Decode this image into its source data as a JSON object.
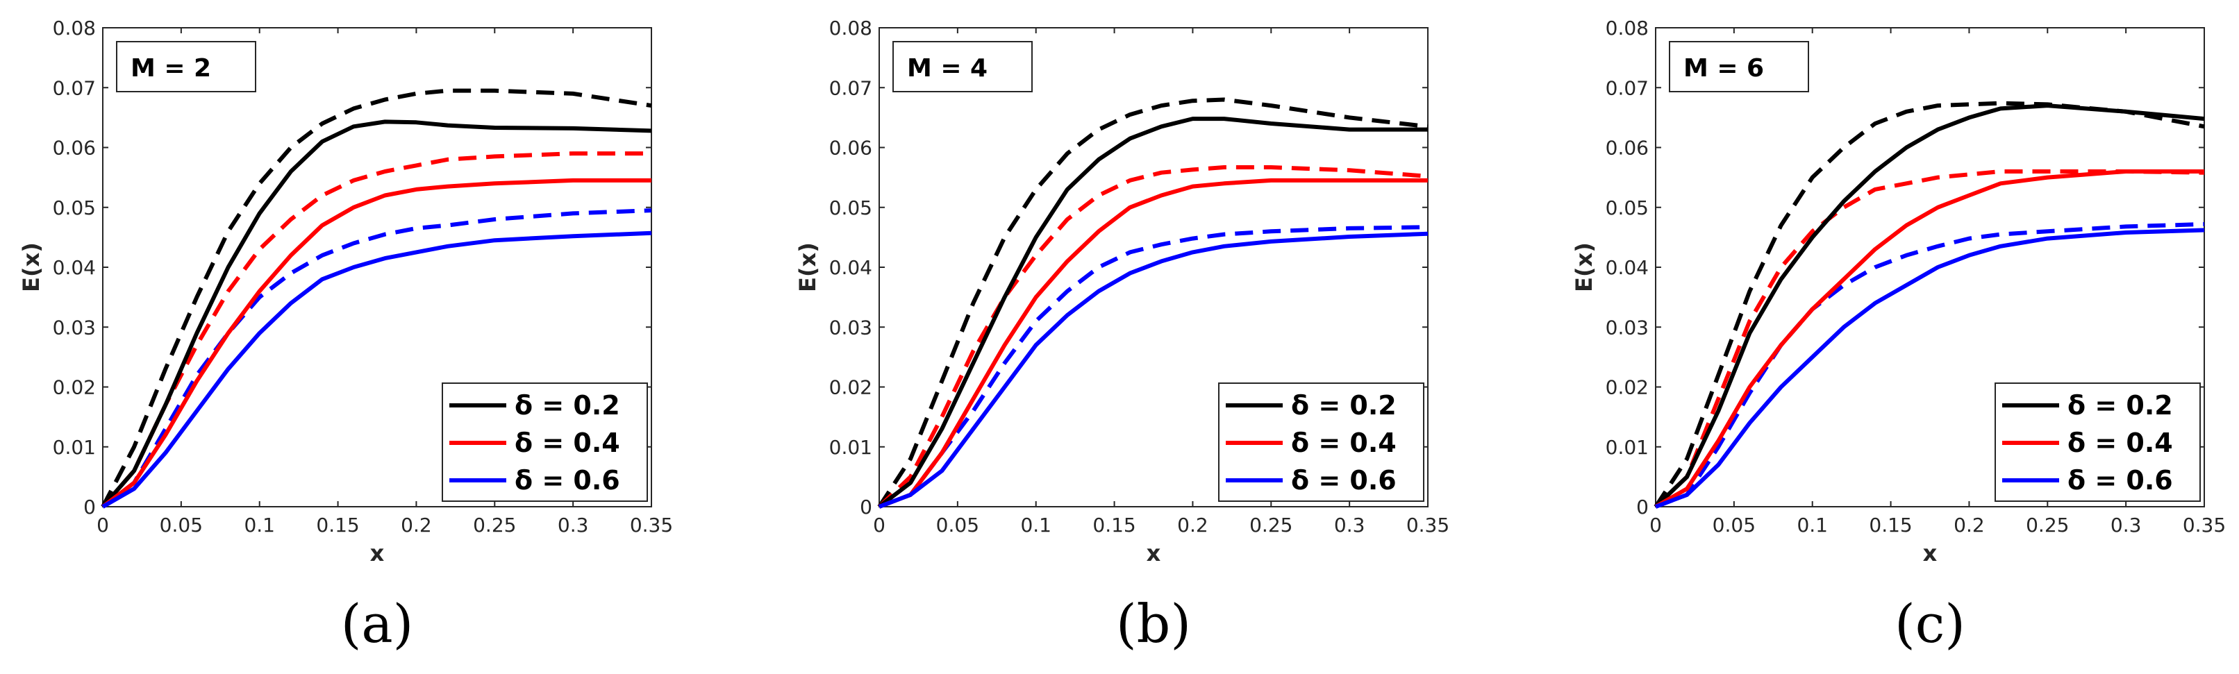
{
  "chart_data": [
    {
      "type": "line",
      "annotation": "M = 2",
      "caption": "(a)",
      "xlabel": "x",
      "ylabel": "E(x)",
      "xlim": [
        0,
        0.35
      ],
      "ylim": [
        0,
        0.08
      ],
      "xticks": [
        "0",
        "0.05",
        "0.1",
        "0.15",
        "0.2",
        "0.25",
        "0.3",
        "0.35"
      ],
      "yticks": [
        "0",
        "0.01",
        "0.02",
        "0.03",
        "0.04",
        "0.05",
        "0.06",
        "0.07",
        "0.08"
      ],
      "legend": {
        "position": "bottom-right",
        "entries": [
          "δ = 0.2",
          "δ = 0.4",
          "δ = 0.6"
        ]
      },
      "x": [
        0,
        0.02,
        0.04,
        0.06,
        0.08,
        0.1,
        0.12,
        0.14,
        0.16,
        0.18,
        0.2,
        0.22,
        0.25,
        0.3,
        0.35
      ],
      "series": [
        {
          "name": "δ = 0.2",
          "style": "solid",
          "color": "#000000",
          "values": [
            0,
            0.006,
            0.017,
            0.029,
            0.04,
            0.049,
            0.056,
            0.061,
            0.0635,
            0.0643,
            0.0642,
            0.0637,
            0.0633,
            0.0632,
            0.0628
          ]
        },
        {
          "name": "δ = 0.2",
          "style": "dashed",
          "color": "#000000",
          "values": [
            0,
            0.01,
            0.023,
            0.035,
            0.046,
            0.054,
            0.06,
            0.064,
            0.0665,
            0.068,
            0.069,
            0.0695,
            0.0695,
            0.069,
            0.067
          ]
        },
        {
          "name": "δ = 0.4",
          "style": "solid",
          "color": "#ff0000",
          "values": [
            0,
            0.004,
            0.012,
            0.021,
            0.029,
            0.036,
            0.042,
            0.047,
            0.05,
            0.052,
            0.053,
            0.0535,
            0.054,
            0.0545,
            0.0545
          ]
        },
        {
          "name": "δ = 0.4",
          "style": "dashed",
          "color": "#ff0000",
          "values": [
            0,
            0.006,
            0.017,
            0.027,
            0.036,
            0.043,
            0.048,
            0.052,
            0.0545,
            0.056,
            0.057,
            0.058,
            0.0585,
            0.059,
            0.059
          ]
        },
        {
          "name": "δ = 0.6",
          "style": "solid",
          "color": "#0000ff",
          "values": [
            0,
            0.003,
            0.009,
            0.016,
            0.023,
            0.029,
            0.034,
            0.038,
            0.04,
            0.0415,
            0.0425,
            0.0435,
            0.0445,
            0.0452,
            0.0457
          ]
        },
        {
          "name": "δ = 0.6",
          "style": "dashed",
          "color": "#0000ff",
          "values": [
            0,
            0.004,
            0.013,
            0.022,
            0.029,
            0.035,
            0.039,
            0.042,
            0.044,
            0.0455,
            0.0465,
            0.047,
            0.048,
            0.049,
            0.0495
          ]
        }
      ]
    },
    {
      "type": "line",
      "annotation": "M = 4",
      "caption": "(b)",
      "xlabel": "x",
      "ylabel": "E(x)",
      "xlim": [
        0,
        0.35
      ],
      "ylim": [
        0,
        0.08
      ],
      "xticks": [
        "0",
        "0.05",
        "0.1",
        "0.15",
        "0.2",
        "0.25",
        "0.3",
        "0.35"
      ],
      "yticks": [
        "0",
        "0.01",
        "0.02",
        "0.03",
        "0.04",
        "0.05",
        "0.06",
        "0.07",
        "0.08"
      ],
      "legend": {
        "position": "bottom-right",
        "entries": [
          "δ = 0.2",
          "δ = 0.4",
          "δ = 0.6"
        ]
      },
      "x": [
        0,
        0.02,
        0.04,
        0.06,
        0.08,
        0.1,
        0.12,
        0.14,
        0.16,
        0.18,
        0.2,
        0.22,
        0.25,
        0.3,
        0.35
      ],
      "series": [
        {
          "name": "δ = 0.2",
          "style": "solid",
          "color": "#000000",
          "values": [
            0,
            0.004,
            0.013,
            0.024,
            0.035,
            0.045,
            0.053,
            0.058,
            0.0615,
            0.0635,
            0.0648,
            0.0648,
            0.064,
            0.063,
            0.063
          ]
        },
        {
          "name": "δ = 0.2",
          "style": "dashed",
          "color": "#000000",
          "values": [
            0,
            0.008,
            0.021,
            0.034,
            0.045,
            0.053,
            0.059,
            0.063,
            0.0655,
            0.067,
            0.0678,
            0.068,
            0.067,
            0.065,
            0.0635
          ]
        },
        {
          "name": "δ = 0.4",
          "style": "solid",
          "color": "#ff0000",
          "values": [
            0,
            0.002,
            0.009,
            0.018,
            0.027,
            0.035,
            0.041,
            0.046,
            0.05,
            0.052,
            0.0535,
            0.054,
            0.0545,
            0.0545,
            0.0545
          ]
        },
        {
          "name": "δ = 0.4",
          "style": "dashed",
          "color": "#ff0000",
          "values": [
            0,
            0.005,
            0.015,
            0.026,
            0.035,
            0.042,
            0.048,
            0.052,
            0.0545,
            0.0558,
            0.0563,
            0.0567,
            0.0567,
            0.0562,
            0.0552
          ]
        },
        {
          "name": "δ = 0.6",
          "style": "solid",
          "color": "#0000ff",
          "values": [
            0,
            0.002,
            0.006,
            0.013,
            0.02,
            0.027,
            0.032,
            0.036,
            0.039,
            0.041,
            0.0425,
            0.0435,
            0.0443,
            0.0451,
            0.0456
          ]
        },
        {
          "name": "δ = 0.6",
          "style": "dashed",
          "color": "#0000ff",
          "values": [
            0,
            0.002,
            0.009,
            0.016,
            0.024,
            0.031,
            0.036,
            0.04,
            0.0425,
            0.0438,
            0.0448,
            0.0455,
            0.046,
            0.0465,
            0.0467
          ]
        }
      ]
    },
    {
      "type": "line",
      "annotation": "M = 6",
      "caption": "(c)",
      "xlabel": "x",
      "ylabel": "E(x)",
      "xlim": [
        0,
        0.35
      ],
      "ylim": [
        0,
        0.08
      ],
      "xticks": [
        "0",
        "0.05",
        "0.1",
        "0.15",
        "0.2",
        "0.25",
        "0.3",
        "0.35"
      ],
      "yticks": [
        "0",
        "0.01",
        "0.02",
        "0.03",
        "0.04",
        "0.05",
        "0.06",
        "0.07",
        "0.08"
      ],
      "legend": {
        "position": "bottom-right",
        "entries": [
          "δ = 0.2",
          "δ = 0.4",
          "δ = 0.6"
        ]
      },
      "x": [
        0,
        0.02,
        0.04,
        0.06,
        0.08,
        0.1,
        0.12,
        0.14,
        0.16,
        0.18,
        0.2,
        0.22,
        0.25,
        0.3,
        0.35
      ],
      "series": [
        {
          "name": "δ = 0.2",
          "style": "solid",
          "color": "#000000",
          "values": [
            0,
            0.005,
            0.016,
            0.029,
            0.038,
            0.045,
            0.051,
            0.056,
            0.06,
            0.063,
            0.065,
            0.0665,
            0.067,
            0.066,
            0.0648
          ]
        },
        {
          "name": "δ = 0.2",
          "style": "dashed",
          "color": "#000000",
          "values": [
            0,
            0.008,
            0.022,
            0.036,
            0.047,
            0.055,
            0.06,
            0.064,
            0.066,
            0.067,
            0.0672,
            0.0674,
            0.0672,
            0.066,
            0.0635
          ]
        },
        {
          "name": "δ = 0.4",
          "style": "solid",
          "color": "#ff0000",
          "values": [
            0,
            0.003,
            0.011,
            0.02,
            0.027,
            0.033,
            0.038,
            0.043,
            0.047,
            0.05,
            0.052,
            0.054,
            0.055,
            0.056,
            0.056
          ]
        },
        {
          "name": "δ = 0.4",
          "style": "dashed",
          "color": "#ff0000",
          "values": [
            0,
            0.005,
            0.018,
            0.031,
            0.04,
            0.046,
            0.05,
            0.053,
            0.054,
            0.055,
            0.0555,
            0.056,
            0.056,
            0.056,
            0.0558
          ]
        },
        {
          "name": "δ = 0.6",
          "style": "solid",
          "color": "#0000ff",
          "values": [
            0,
            0.002,
            0.007,
            0.014,
            0.02,
            0.025,
            0.03,
            0.034,
            0.037,
            0.04,
            0.042,
            0.0435,
            0.0448,
            0.0458,
            0.0462
          ]
        },
        {
          "name": "δ = 0.6",
          "style": "dashed",
          "color": "#0000ff",
          "values": [
            0,
            0.002,
            0.01,
            0.019,
            0.027,
            0.033,
            0.037,
            0.04,
            0.042,
            0.0435,
            0.0448,
            0.0455,
            0.046,
            0.0468,
            0.0472
          ]
        }
      ]
    }
  ]
}
